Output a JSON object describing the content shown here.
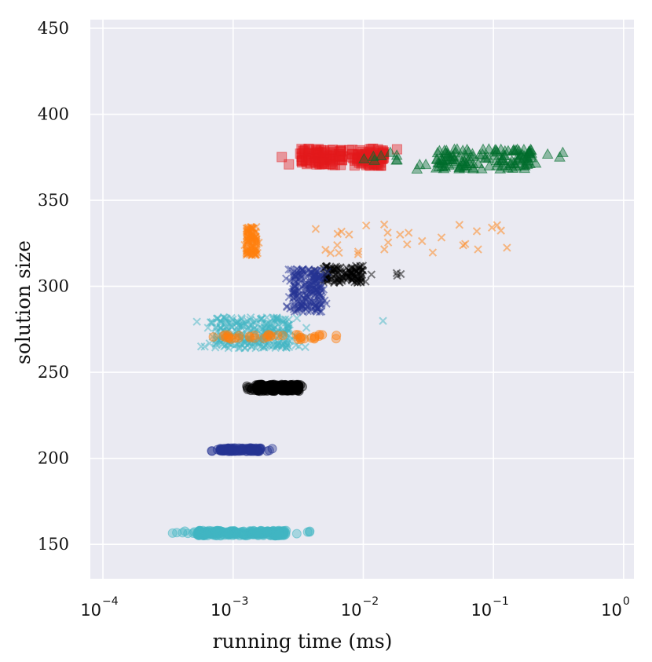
{
  "chart_data": {
    "type": "scatter",
    "title": "",
    "xlabel": "running time (ms)",
    "ylabel": "solution size",
    "xscale": "log",
    "xlim": [
      8e-05,
      1.2
    ],
    "ylim": [
      130,
      455
    ],
    "grid": true,
    "background": "#eaeaf2",
    "x_ticks": [
      {
        "base": "10",
        "exp": "−4",
        "value": 0.0001
      },
      {
        "base": "10",
        "exp": "−3",
        "value": 0.001
      },
      {
        "base": "10",
        "exp": "−2",
        "value": 0.01
      },
      {
        "base": "10",
        "exp": "−1",
        "value": 0.1
      },
      {
        "base": "10",
        "exp": "0",
        "value": 1
      }
    ],
    "y_ticks": [
      150,
      200,
      250,
      300,
      350,
      400,
      450
    ],
    "clusters": [
      {
        "marker": "square",
        "color": "#e41a1c",
        "count": 170,
        "x_range": [
          0.0022,
          0.022
        ],
        "y_range": [
          370,
          380
        ]
      },
      {
        "marker": "triangle",
        "color": "#006d2c",
        "count": 140,
        "x_range": [
          0.022,
          0.35
        ],
        "y_range": [
          368,
          380
        ]
      },
      {
        "marker": "triangle",
        "color": "#006d2c",
        "count": 8,
        "x_range": [
          0.008,
          0.022
        ],
        "y_range": [
          373,
          378
        ]
      },
      {
        "marker": "x",
        "color": "#ff7f0e",
        "count": 110,
        "x_range": [
          0.0012,
          0.0016
        ],
        "y_range": [
          318,
          335
        ]
      },
      {
        "marker": "x",
        "color": "#ff7f0e",
        "count": 30,
        "x_range": [
          0.002,
          0.28
        ],
        "y_range": [
          318,
          336
        ]
      },
      {
        "marker": "x",
        "color": "#000000",
        "count": 130,
        "x_range": [
          0.004,
          0.012
        ],
        "y_range": [
          302,
          312
        ]
      },
      {
        "marker": "x",
        "color": "#000000",
        "count": 3,
        "x_range": [
          0.015,
          0.026
        ],
        "y_range": [
          306,
          308
        ]
      },
      {
        "marker": "x",
        "color": "#253494",
        "count": 220,
        "x_range": [
          0.0025,
          0.0055
        ],
        "y_range": [
          285,
          310
        ]
      },
      {
        "marker": "x",
        "color": "#41b6c4",
        "count": 270,
        "x_range": [
          0.0005,
          0.004
        ],
        "y_range": [
          264,
          282
        ]
      },
      {
        "marker": "x",
        "color": "#41b6c4",
        "count": 1,
        "x_range": [
          0.014,
          0.015
        ],
        "y_range": [
          279,
          280
        ]
      },
      {
        "marker": "circle",
        "color": "#ff7f0e",
        "count": 40,
        "x_range": [
          0.0005,
          0.0085
        ],
        "y_range": [
          269,
          272
        ]
      },
      {
        "marker": "circle",
        "color": "#000000",
        "count": 200,
        "x_range": [
          0.0012,
          0.004
        ],
        "y_range": [
          239,
          243
        ]
      },
      {
        "marker": "circle",
        "color": "#253494",
        "count": 120,
        "x_range": [
          0.00065,
          0.002
        ],
        "y_range": [
          204,
          206
        ]
      },
      {
        "marker": "circle",
        "color": "#41b6c4",
        "count": 300,
        "x_range": [
          0.00034,
          0.004
        ],
        "y_range": [
          155,
          158
        ]
      }
    ]
  }
}
